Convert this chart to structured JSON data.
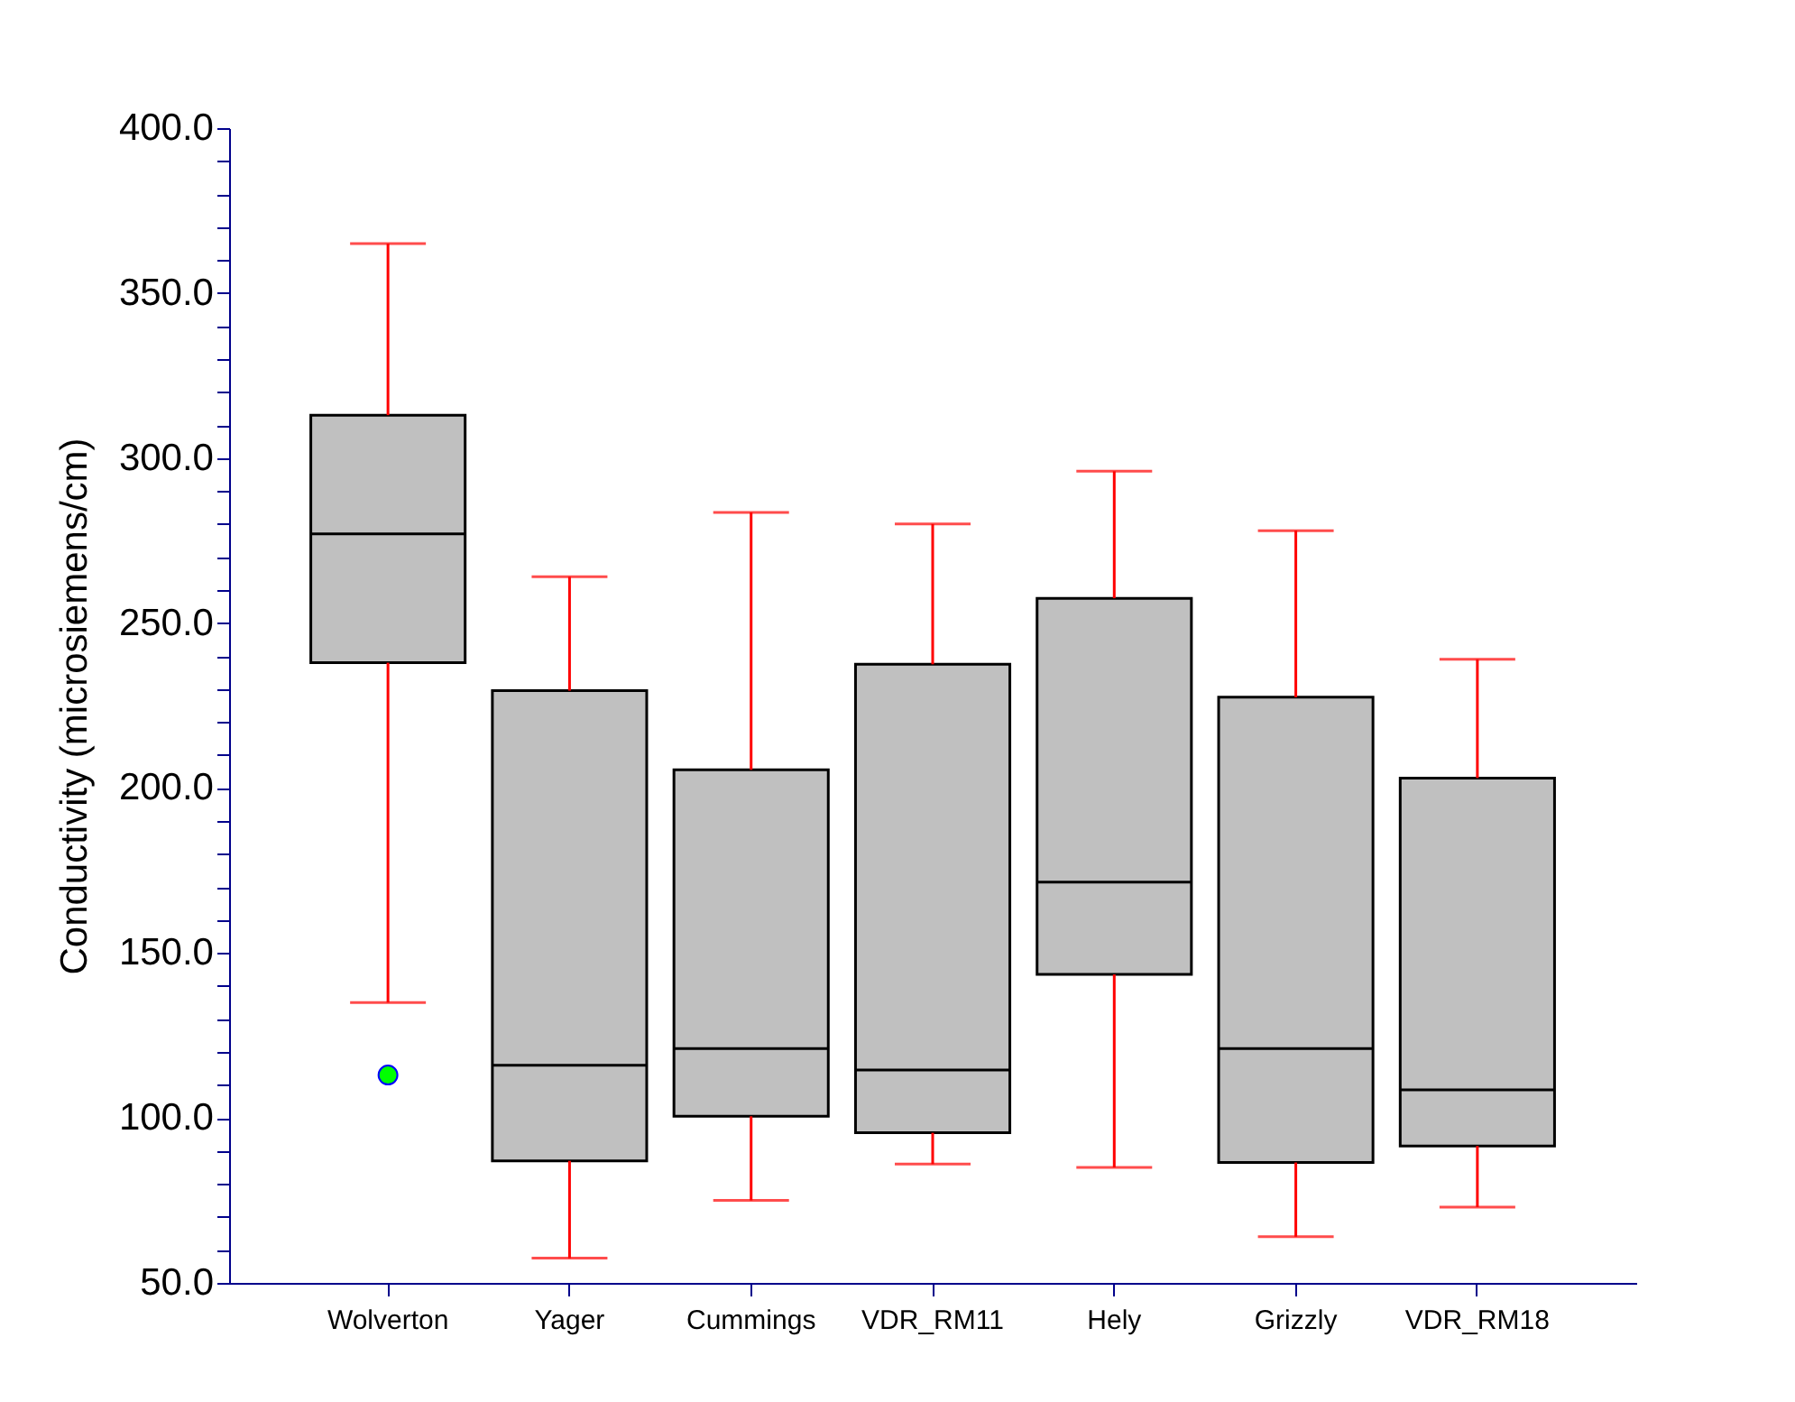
{
  "chart_data": {
    "type": "box",
    "ylabel": "Conductivity (microsiemens/cm)",
    "categories": [
      "Wolverton",
      "Yager",
      "Cummings",
      "VDR_RM11",
      "Hely",
      "Grizzly",
      "VDR_RM18"
    ],
    "boxes": [
      {
        "low": 135,
        "q1": 238,
        "median": 277,
        "q3": 313,
        "high": 365,
        "outliers": [
          113
        ]
      },
      {
        "low": 57.5,
        "q1": 87,
        "median": 116,
        "q3": 229.5,
        "high": 264
      },
      {
        "low": 75,
        "q1": 100.5,
        "median": 121,
        "q3": 205.5,
        "high": 283.5
      },
      {
        "low": 86,
        "q1": 95.5,
        "median": 114.5,
        "q3": 237.5,
        "high": 280
      },
      {
        "low": 85,
        "q1": 143.5,
        "median": 171.5,
        "q3": 257.5,
        "high": 296
      },
      {
        "low": 64,
        "q1": 86.5,
        "median": 121,
        "q3": 227.5,
        "high": 278
      },
      {
        "low": 73,
        "q1": 91.5,
        "median": 108.5,
        "q3": 203,
        "high": 239
      }
    ],
    "ylim": [
      50,
      400
    ],
    "yticks": [
      {
        "value": 50,
        "label": "50.0"
      },
      {
        "value": 60,
        "label": null
      },
      {
        "value": 70,
        "label": null
      },
      {
        "value": 80,
        "label": null
      },
      {
        "value": 90,
        "label": null
      },
      {
        "value": 100,
        "label": "100.0"
      },
      {
        "value": 110,
        "label": null
      },
      {
        "value": 120,
        "label": null
      },
      {
        "value": 130,
        "label": null
      },
      {
        "value": 140,
        "label": null
      },
      {
        "value": 150,
        "label": "150.0"
      },
      {
        "value": 160,
        "label": null
      },
      {
        "value": 170,
        "label": null
      },
      {
        "value": 180,
        "label": null
      },
      {
        "value": 190,
        "label": null
      },
      {
        "value": 200,
        "label": "200.0"
      },
      {
        "value": 210,
        "label": null
      },
      {
        "value": 220,
        "label": null
      },
      {
        "value": 230,
        "label": null
      },
      {
        "value": 240,
        "label": null
      },
      {
        "value": 250,
        "label": "250.0"
      },
      {
        "value": 260,
        "label": null
      },
      {
        "value": 270,
        "label": null
      },
      {
        "value": 280,
        "label": null
      },
      {
        "value": 290,
        "label": null
      },
      {
        "value": 300,
        "label": "300.0"
      },
      {
        "value": 310,
        "label": null
      },
      {
        "value": 320,
        "label": null
      },
      {
        "value": 330,
        "label": null
      },
      {
        "value": 340,
        "label": null
      },
      {
        "value": 350,
        "label": "350.0"
      },
      {
        "value": 360,
        "label": null
      },
      {
        "value": 370,
        "label": null
      },
      {
        "value": 380,
        "label": null
      },
      {
        "value": 390,
        "label": null
      },
      {
        "value": 400,
        "label": "400.0"
      }
    ],
    "grid": false
  }
}
